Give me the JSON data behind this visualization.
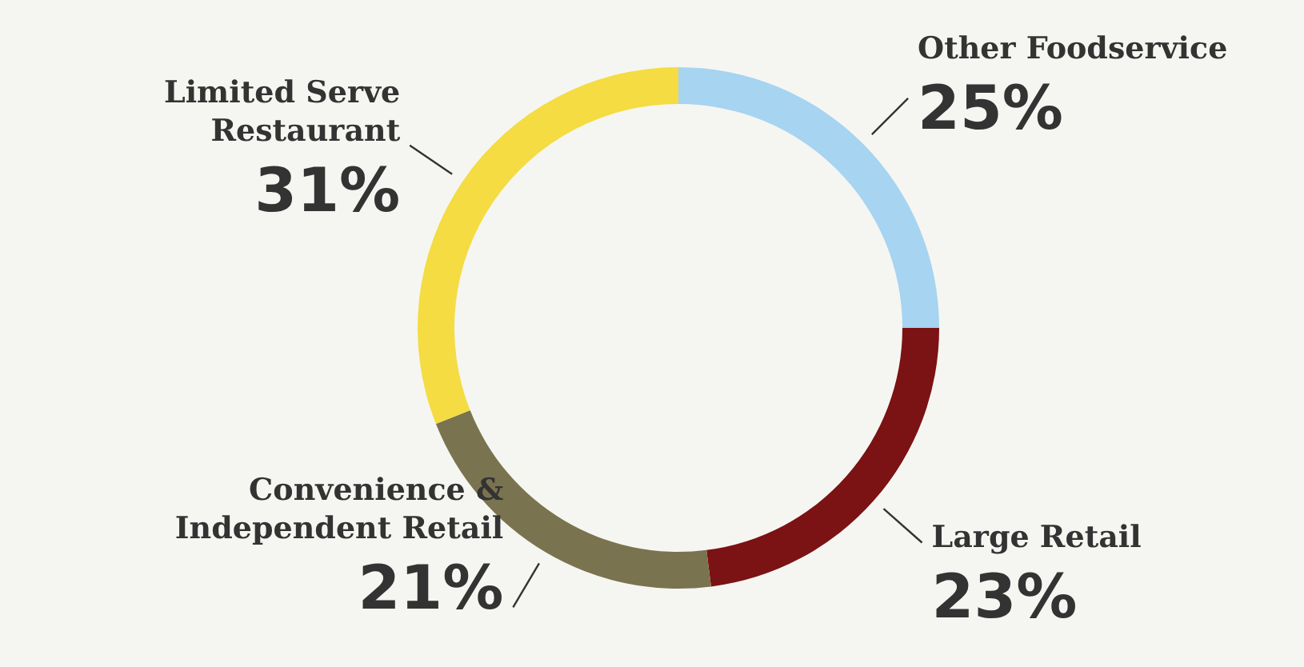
{
  "chart_data": {
    "type": "donut",
    "categories": [
      "Other Foodservice",
      "Large Retail",
      "Convenience & Independent Retail",
      "Limited Serve Restaurant"
    ],
    "values": [
      25,
      23,
      21,
      31
    ],
    "value_labels": [
      "25%",
      "23%",
      "21%",
      "31%"
    ],
    "colors": [
      "#a6d4f1",
      "#7b1214",
      "#7a734f",
      "#f4dc42"
    ],
    "legend": false
  }
}
